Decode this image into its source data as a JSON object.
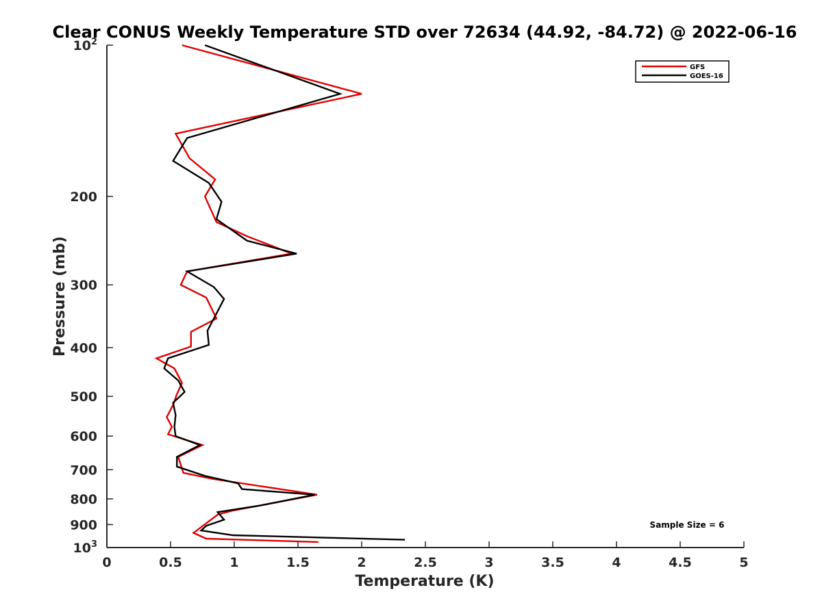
{
  "chart_data": {
    "type": "line",
    "title": "Clear CONUS Weekly Temperature STD over 72634 (44.92, -84.72) @ 2022-06-16",
    "xlabel": "Temperature (K)",
    "ylabel": "Pressure (mb)",
    "xlim": [
      0,
      5
    ],
    "ylim": [
      100,
      1000
    ],
    "y_scale": "log",
    "y_reversed": true,
    "grid": false,
    "legend_position": "top-right",
    "x_ticks": [
      0,
      0.5,
      1,
      1.5,
      2,
      2.5,
      3,
      3.5,
      4,
      4.5,
      5
    ],
    "x_tick_labels": [
      "0",
      "0.5",
      "1",
      "1.5",
      "2",
      "2.5",
      "3",
      "3.5",
      "4",
      "4.5",
      "5"
    ],
    "y_ticks": [
      100,
      200,
      300,
      400,
      500,
      600,
      700,
      800,
      900,
      1000
    ],
    "y_tick_labels": [
      {
        "base": "10",
        "exp": "2"
      },
      {
        "base": "200"
      },
      {
        "base": "300"
      },
      {
        "base": "400"
      },
      {
        "base": "500"
      },
      {
        "base": "600"
      },
      {
        "base": "700"
      },
      {
        "base": "800"
      },
      {
        "base": "900"
      },
      {
        "base": "10",
        "exp": "3"
      }
    ],
    "series": [
      {
        "name": "GFS",
        "color": "#e00000",
        "points": [
          [
            0.59,
            100
          ],
          [
            2.0,
            125
          ],
          [
            0.54,
            150
          ],
          [
            0.65,
            168
          ],
          [
            0.85,
            185
          ],
          [
            0.77,
            200
          ],
          [
            0.86,
            225
          ],
          [
            1.1,
            240
          ],
          [
            1.45,
            260
          ],
          [
            0.63,
            282
          ],
          [
            0.58,
            300
          ],
          [
            0.78,
            318
          ],
          [
            0.86,
            350
          ],
          [
            0.66,
            372
          ],
          [
            0.66,
            398
          ],
          [
            0.39,
            420
          ],
          [
            0.53,
            440
          ],
          [
            0.59,
            470
          ],
          [
            0.55,
            495
          ],
          [
            0.52,
            520
          ],
          [
            0.47,
            550
          ],
          [
            0.51,
            575
          ],
          [
            0.48,
            595
          ],
          [
            0.75,
            625
          ],
          [
            0.56,
            660
          ],
          [
            0.6,
            710
          ],
          [
            0.83,
            730
          ],
          [
            1.65,
            785
          ],
          [
            0.98,
            845
          ],
          [
            0.87,
            860
          ],
          [
            0.68,
            935
          ],
          [
            0.78,
            960
          ],
          [
            1.66,
            975
          ]
        ]
      },
      {
        "name": "GOES-16",
        "color": "#000000",
        "points": [
          [
            0.77,
            100
          ],
          [
            1.83,
            125
          ],
          [
            0.63,
            153
          ],
          [
            0.52,
            170
          ],
          [
            0.8,
            188
          ],
          [
            0.9,
            205
          ],
          [
            0.86,
            222
          ],
          [
            1.1,
            245
          ],
          [
            1.49,
            260
          ],
          [
            0.63,
            282
          ],
          [
            0.84,
            303
          ],
          [
            0.92,
            320
          ],
          [
            0.84,
            350
          ],
          [
            0.79,
            370
          ],
          [
            0.8,
            395
          ],
          [
            0.48,
            420
          ],
          [
            0.45,
            440
          ],
          [
            0.56,
            465
          ],
          [
            0.61,
            490
          ],
          [
            0.52,
            515
          ],
          [
            0.54,
            545
          ],
          [
            0.53,
            575
          ],
          [
            0.54,
            600
          ],
          [
            0.73,
            625
          ],
          [
            0.55,
            660
          ],
          [
            0.55,
            690
          ],
          [
            0.77,
            720
          ],
          [
            1.03,
            745
          ],
          [
            1.06,
            765
          ],
          [
            1.63,
            785
          ],
          [
            1.2,
            825
          ],
          [
            0.87,
            850
          ],
          [
            0.92,
            880
          ],
          [
            0.78,
            905
          ],
          [
            0.74,
            925
          ],
          [
            0.99,
            945
          ],
          [
            2.34,
            965
          ]
        ]
      }
    ],
    "annotations": [
      {
        "text": "Sample Size = 6",
        "position": "bottom-right"
      }
    ]
  }
}
